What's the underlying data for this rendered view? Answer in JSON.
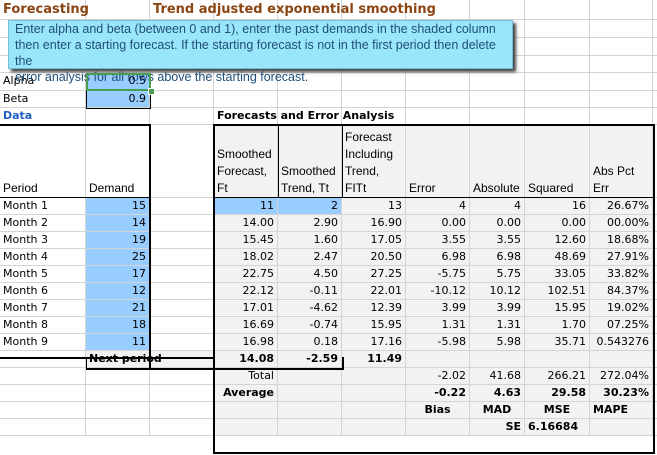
{
  "sheet": {
    "title_left": "Forecasting",
    "title_main": "Trend adjusted exponential smoothing",
    "note": {
      "line1": "Enter alpha and beta (between 0 and 1), enter the past demands in the shaded column",
      "line2": "then enter a starting forecast. If the starting forecast is not in the first period then delete the",
      "line3": "error analysis for all rows above the starting forecast."
    },
    "params": {
      "alpha_label": "Alpha",
      "alpha_value": "0.5",
      "beta_label": "Beta",
      "beta_value": "0.9"
    },
    "data_label": "Data",
    "analysis_label": "Forecasts and Error Analysis",
    "headers": {
      "period": "Period",
      "demand": "Demand",
      "smoothed_forecast": "Smoothed Forecast, Ft",
      "smoothed_trend": "Smoothed Trend, Tt",
      "fit": "Forecast Including Trend, FITt",
      "error": "Error",
      "absolute": "Absolute",
      "squared": "Squared",
      "abs_pct_err": "Abs Pct Err"
    },
    "rows": [
      {
        "period": "Month 1",
        "demand": "15",
        "ft": "11",
        "tt": "2",
        "fit": "13",
        "error": "4",
        "abs": "4",
        "sq": "16",
        "ape": "26.67%"
      },
      {
        "period": "Month 2",
        "demand": "14",
        "ft": "14.00",
        "tt": "2.90",
        "fit": "16.90",
        "error": "0.00",
        "abs": "0.00",
        "sq": "0.00",
        "ape": "00.00%"
      },
      {
        "period": "Month 3",
        "demand": "19",
        "ft": "15.45",
        "tt": "1.60",
        "fit": "17.05",
        "error": "3.55",
        "abs": "3.55",
        "sq": "12.60",
        "ape": "18.68%"
      },
      {
        "period": "Month 4",
        "demand": "25",
        "ft": "18.02",
        "tt": "2.47",
        "fit": "20.50",
        "error": "6.98",
        "abs": "6.98",
        "sq": "48.69",
        "ape": "27.91%"
      },
      {
        "period": "Month 5",
        "demand": "17",
        "ft": "22.75",
        "tt": "4.50",
        "fit": "27.25",
        "error": "-5.75",
        "abs": "5.75",
        "sq": "33.05",
        "ape": "33.82%"
      },
      {
        "period": "Month 6",
        "demand": "12",
        "ft": "22.12",
        "tt": "-0.11",
        "fit": "22.01",
        "error": "-10.12",
        "abs": "10.12",
        "sq": "102.51",
        "ape": "84.37%"
      },
      {
        "period": "Month 7",
        "demand": "21",
        "ft": "17.01",
        "tt": "-4.62",
        "fit": "12.39",
        "error": "3.99",
        "abs": "3.99",
        "sq": "15.95",
        "ape": "19.02%"
      },
      {
        "period": "Month 8",
        "demand": "18",
        "ft": "16.69",
        "tt": "-0.74",
        "fit": "15.95",
        "error": "1.31",
        "abs": "1.31",
        "sq": "1.70",
        "ape": "07.25%"
      },
      {
        "period": "Month 9",
        "demand": "11",
        "ft": "16.98",
        "tt": "0.18",
        "fit": "17.16",
        "error": "-5.98",
        "abs": "5.98",
        "sq": "35.71",
        "ape": "0.543276"
      }
    ],
    "next_period": {
      "label": "Next period",
      "ft": "14.08",
      "tt": "-2.59",
      "fit": "11.49"
    },
    "total": {
      "label": "Total",
      "error": "-2.02",
      "abs": "41.68",
      "sq": "266.21",
      "ape": "272.04%"
    },
    "average": {
      "label": "Average",
      "error": "-0.22",
      "abs": "4.63",
      "sq": "29.58",
      "ape": "30.23%"
    },
    "metrics": {
      "bias": "Bias",
      "mad": "MAD",
      "mse": "MSE",
      "mape": "MAPE"
    },
    "se": {
      "label": "SE",
      "value": "6.16684"
    }
  }
}
